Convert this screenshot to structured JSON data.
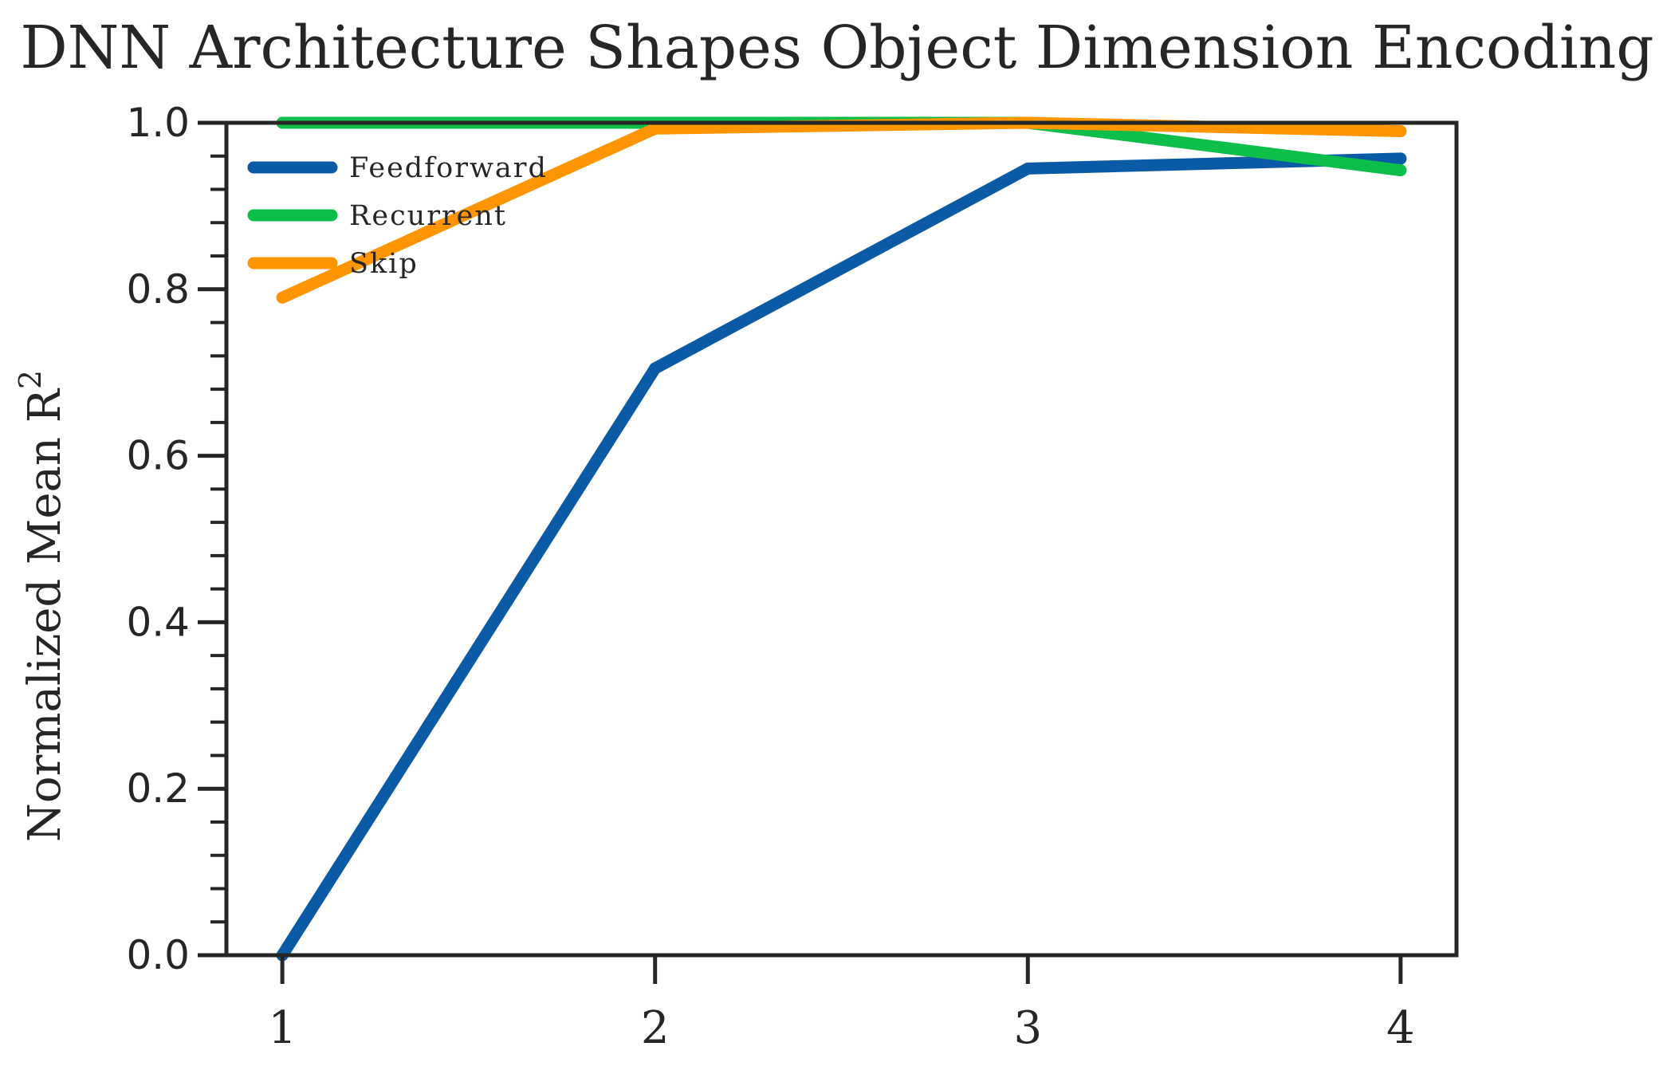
{
  "chart_data": {
    "type": "line",
    "title": "DNN Architecture Shapes Object Dimension Encoding",
    "ylabel": "Normalized Mean R",
    "ylabel_sup": "2",
    "xlabel": "",
    "x": [
      1,
      2,
      3,
      4
    ],
    "x_tick_labels": [
      "1",
      "2",
      "3",
      "4"
    ],
    "y_ticks": [
      0.0,
      0.2,
      0.4,
      0.6,
      0.8,
      1.0
    ],
    "y_tick_labels": [
      "0.0",
      "0.2",
      "0.4",
      "0.6",
      "0.8",
      "1.0"
    ],
    "xlim": [
      0.85,
      4.15
    ],
    "ylim": [
      0.0,
      1.0
    ],
    "grid": false,
    "legend_position": "upper-left",
    "series": [
      {
        "name": "Feedforward",
        "color": "#0b5aa6",
        "values": [
          0.0,
          0.705,
          0.945,
          0.957
        ]
      },
      {
        "name": "Recurrent",
        "color": "#0ebe4a",
        "values": [
          1.0,
          1.0,
          1.0,
          0.943
        ]
      },
      {
        "name": "Skip",
        "color": "#ff9500",
        "values": [
          0.79,
          0.993,
          1.0,
          0.99
        ]
      }
    ]
  }
}
